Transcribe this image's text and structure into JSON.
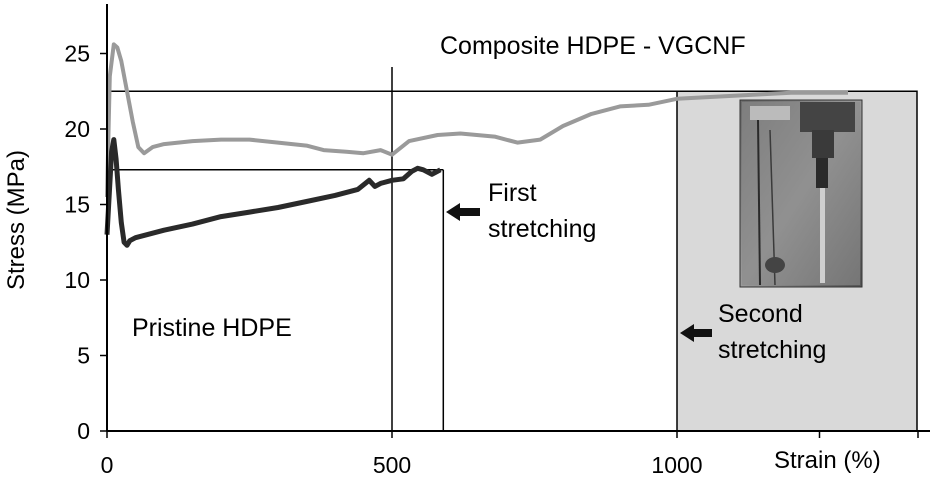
{
  "chart_data": {
    "type": "line",
    "title": "",
    "xlabel": "Strain (%)",
    "ylabel": "Stress (MPa)",
    "xlim": [
      0,
      1430
    ],
    "ylim": [
      0,
      28.5
    ],
    "x_ticks": [
      "0",
      "500",
      "1000"
    ],
    "x_tick_values": [
      0,
      500,
      1000
    ],
    "y_ticks": [
      "0",
      "5",
      "10",
      "15",
      "20",
      "25"
    ],
    "y_tick_values": [
      0,
      5,
      10,
      15,
      20,
      25
    ],
    "grid": false,
    "series": [
      {
        "name": "Composite HDPE - VGCNF",
        "color": "#9a9a9a",
        "x": [
          0,
          5,
          12,
          18,
          25,
          35,
          45,
          55,
          65,
          80,
          100,
          150,
          200,
          250,
          300,
          350,
          380,
          420,
          450,
          480,
          500,
          530,
          580,
          620,
          680,
          720,
          760,
          800,
          850,
          900,
          950,
          1000,
          1050,
          1100,
          1150,
          1200,
          1300
        ],
        "y": [
          15.5,
          23.5,
          25.6,
          25.4,
          24.5,
          22.5,
          20.5,
          18.8,
          18.4,
          18.8,
          19.0,
          19.2,
          19.3,
          19.3,
          19.1,
          18.9,
          18.6,
          18.5,
          18.4,
          18.6,
          18.3,
          19.2,
          19.6,
          19.7,
          19.5,
          19.1,
          19.3,
          20.2,
          21.0,
          21.5,
          21.6,
          22.0,
          22.1,
          22.2,
          22.3,
          22.4,
          22.4
        ]
      },
      {
        "name": "Pristine HDPE",
        "color": "#2a2a2a",
        "x": [
          0,
          8,
          12,
          16,
          20,
          25,
          30,
          35,
          40,
          50,
          60,
          80,
          100,
          150,
          200,
          250,
          300,
          350,
          400,
          440,
          460,
          470,
          480,
          500,
          520,
          535,
          545,
          555,
          570,
          585
        ],
        "y": [
          13.0,
          18.5,
          19.3,
          18.0,
          16.0,
          13.8,
          12.5,
          12.3,
          12.6,
          12.8,
          12.9,
          13.1,
          13.3,
          13.7,
          14.2,
          14.5,
          14.8,
          15.2,
          15.6,
          16.0,
          16.6,
          16.2,
          16.4,
          16.6,
          16.7,
          17.2,
          17.4,
          17.3,
          17.0,
          17.3
        ]
      }
    ],
    "annotations": {
      "composite_label": "Composite HDPE - VGCNF",
      "pristine_label": "Pristine HDPE",
      "first_line1": "First",
      "first_line2": "stretching",
      "second_line1": "Second",
      "second_line2": "stretching"
    },
    "reference_lines": {
      "h_composite": 22.5,
      "h_pristine": 17.3,
      "v_first_left": 500,
      "v_first_right": 590,
      "second_region_start": 1000
    },
    "inset_photo": true
  }
}
